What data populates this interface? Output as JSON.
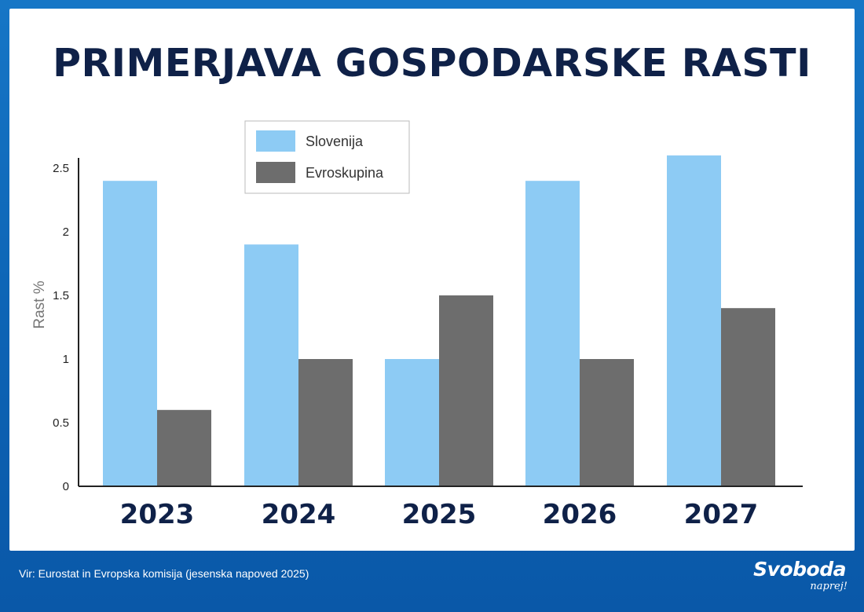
{
  "header": {
    "title": "PRIMERJAVA GOSPODARSKE RASTI"
  },
  "footer": {
    "source": "Vir: Eurostat in Evropska komisija (jesenska napoved 2025)",
    "logo_main": "Svoboda",
    "logo_sub": "naprej!"
  },
  "colors": {
    "slovenija": "#8dcbf4",
    "evroskupina": "#6d6d6d",
    "title": "#0f2148"
  },
  "chart_data": {
    "type": "bar",
    "title": "PRIMERJAVA GOSPODARSKE RASTI",
    "xlabel": "",
    "ylabel": "Rast %",
    "categories": [
      "2023",
      "2024",
      "2025",
      "2026",
      "2027"
    ],
    "series": [
      {
        "name": "Slovenija",
        "values": [
          2.4,
          1.9,
          1.0,
          2.4,
          2.6
        ]
      },
      {
        "name": "Evroskupina",
        "values": [
          0.6,
          1.0,
          1.5,
          1.0,
          1.4
        ]
      }
    ],
    "yticks": [
      "0",
      "0.5",
      "1",
      "1.5",
      "2",
      "2.5"
    ],
    "ylim": [
      0,
      2.6
    ],
    "grid": false,
    "legend": "top-left"
  }
}
